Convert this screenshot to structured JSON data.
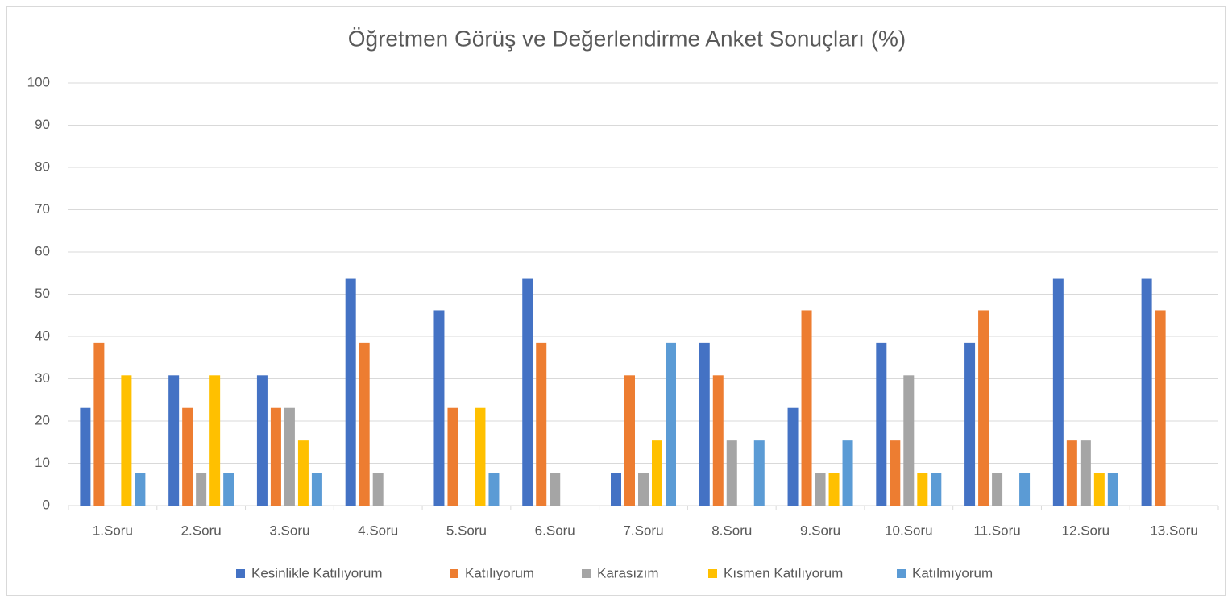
{
  "chart_data": {
    "type": "bar",
    "title": "Öğretmen Görüş ve Değerlendirme Anket Sonuçları (%)",
    "categories": [
      "1.Soru",
      "2.Soru",
      "3.Soru",
      "4.Soru",
      "5.Soru",
      "6.Soru",
      "7.Soru",
      "8.Soru",
      "9.Soru",
      "10.Soru",
      "11.Soru",
      "12.Soru",
      "13.Soru"
    ],
    "series": [
      {
        "name": "Kesinlikle Katılıyorum",
        "color": "#4472c4",
        "values": [
          23.1,
          30.8,
          30.8,
          53.8,
          46.2,
          53.8,
          7.7,
          38.5,
          23.1,
          38.5,
          38.5,
          53.8,
          53.8
        ]
      },
      {
        "name": "Katılıyorum",
        "color": "#ed7d31",
        "values": [
          38.5,
          23.1,
          23.1,
          38.5,
          23.1,
          38.5,
          30.8,
          30.8,
          46.2,
          15.4,
          46.2,
          15.4,
          46.2
        ]
      },
      {
        "name": "Karasızım",
        "color": "#a5a5a5",
        "values": [
          0,
          7.7,
          23.1,
          7.7,
          0,
          7.7,
          7.7,
          15.4,
          7.7,
          30.8,
          7.7,
          15.4,
          0
        ]
      },
      {
        "name": "Kısmen Katılıyorum",
        "color": "#ffc000",
        "values": [
          30.8,
          30.8,
          15.4,
          0,
          23.1,
          0,
          15.4,
          0,
          7.7,
          7.7,
          0,
          7.7,
          0
        ]
      },
      {
        "name": "Katılmıyorum",
        "color": "#5b9bd5",
        "values": [
          7.7,
          7.7,
          7.7,
          0,
          7.7,
          0,
          38.5,
          15.4,
          15.4,
          7.7,
          7.7,
          7.7,
          0
        ]
      }
    ],
    "ylim": [
      0,
      100
    ],
    "yticks": [
      0,
      10,
      20,
      30,
      40,
      50,
      60,
      70,
      80,
      90,
      100
    ],
    "grid": true,
    "legend": "bottom"
  }
}
